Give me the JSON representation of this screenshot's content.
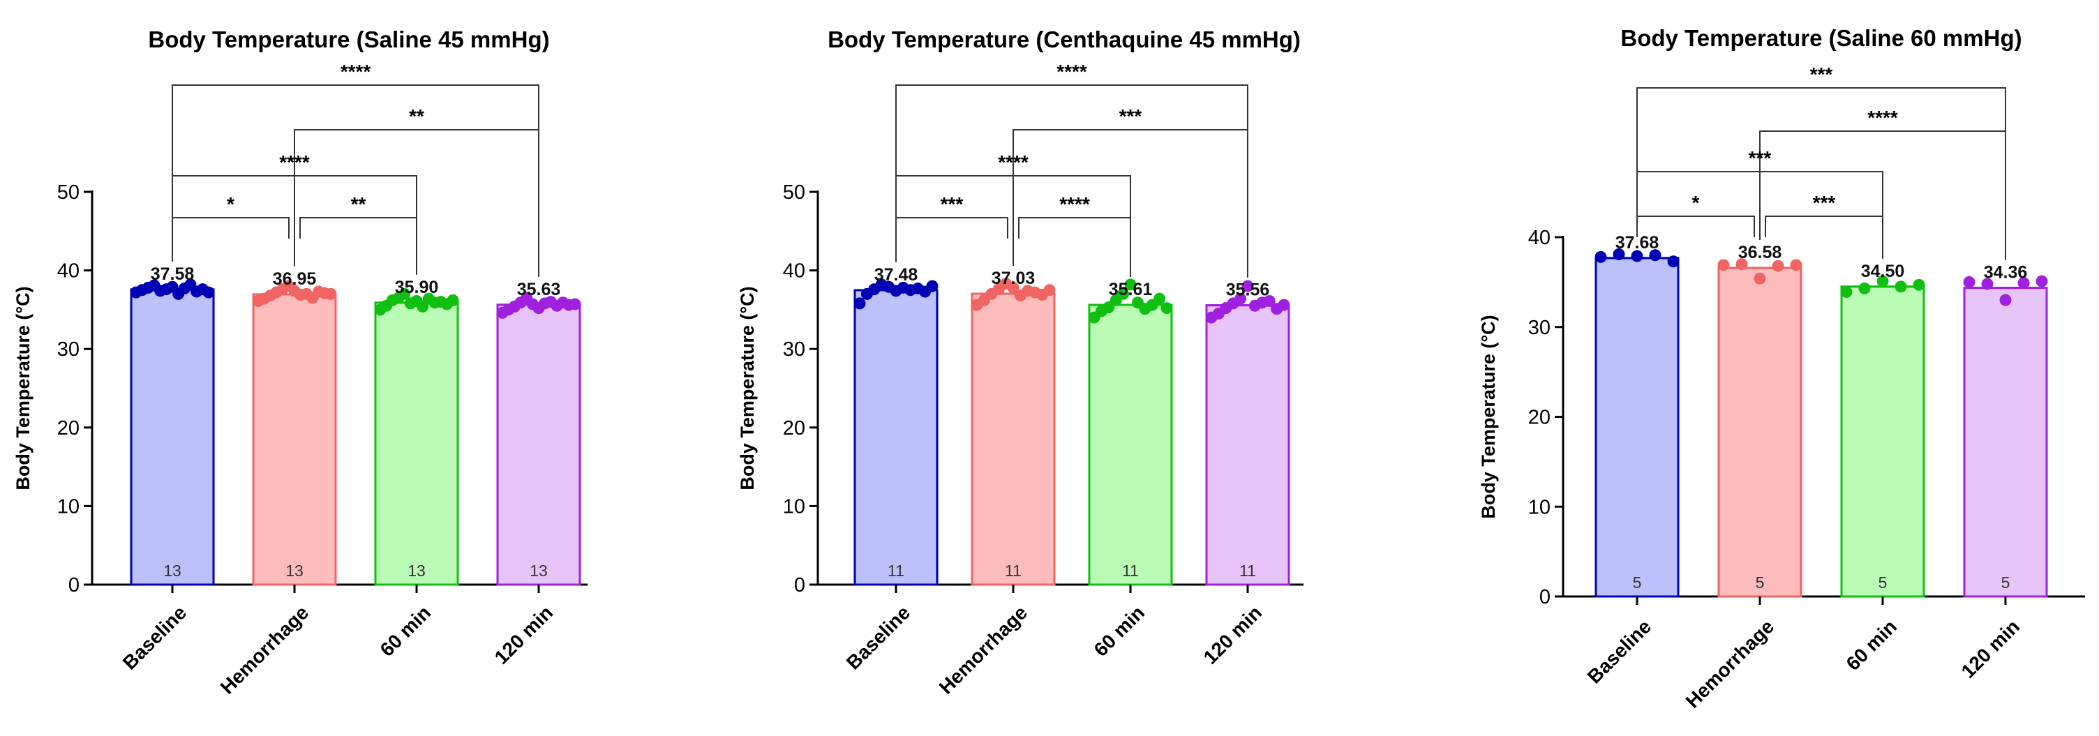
{
  "chart_data": [
    {
      "type": "bar",
      "title": "Body Temperature (Saline 45 mmHg)",
      "ylabel": "Body Temperature (°C)",
      "ylim": [
        0,
        50
      ],
      "yticks": [
        0,
        10,
        20,
        30,
        40,
        50
      ],
      "categories": [
        "Baseline",
        "Hemorrhage",
        "60 min",
        "120 min"
      ],
      "values": [
        37.58,
        36.95,
        35.9,
        35.63
      ],
      "value_labels": [
        "37.58",
        "36.95",
        "35.90",
        "35.63"
      ],
      "n": [
        13,
        13,
        13,
        13
      ],
      "n_labels": [
        "13",
        "13",
        "13",
        "13"
      ],
      "colors": [
        "#0000b4",
        "#f06464",
        "#10c010",
        "#a020e0"
      ],
      "fills": [
        "#bcc1fc",
        "#fcbcbc",
        "#bafcb6",
        "#e6c4f8"
      ],
      "points": [
        [
          37.2,
          37.5,
          37.8,
          38.1,
          37.4,
          37.6,
          37.9,
          37.0,
          37.7,
          38.2,
          37.3,
          37.6,
          37.2
        ],
        [
          36.1,
          36.4,
          36.8,
          37.2,
          37.6,
          38.0,
          37.4,
          36.9,
          37.0,
          36.5,
          37.3,
          37.1,
          37.0
        ],
        [
          35.0,
          35.5,
          36.2,
          36.5,
          37.0,
          35.8,
          36.1,
          35.4,
          36.4,
          35.9,
          36.0,
          35.7,
          36.2
        ],
        [
          34.6,
          35.0,
          35.4,
          35.9,
          36.5,
          35.7,
          35.2,
          35.8,
          36.0,
          35.5,
          35.9,
          35.6,
          35.7
        ]
      ],
      "comparisons": [
        {
          "from": 0,
          "to": 3,
          "label": "****"
        },
        {
          "from": 1,
          "to": 3,
          "label": "**"
        },
        {
          "from": 0,
          "to": 2,
          "label": "****"
        },
        {
          "from": 0,
          "to": 1,
          "label": "*"
        },
        {
          "from": 1,
          "to": 2,
          "label": "**"
        }
      ]
    },
    {
      "type": "bar",
      "title": "Body Temperature (Centhaquine 45 mmHg)",
      "ylabel": "Body Temperature (°C)",
      "ylim": [
        0,
        50
      ],
      "yticks": [
        0,
        10,
        20,
        30,
        40,
        50
      ],
      "categories": [
        "Baseline",
        "Hemorrhage",
        "60 min",
        "120 min"
      ],
      "values": [
        37.48,
        37.03,
        35.61,
        35.56
      ],
      "value_labels": [
        "37.48",
        "37.03",
        "35.61",
        "35.56"
      ],
      "n": [
        11,
        11,
        11,
        11
      ],
      "n_labels": [
        "11",
        "11",
        "11",
        "11"
      ],
      "colors": [
        "#0000b4",
        "#f06464",
        "#10c010",
        "#a020e0"
      ],
      "fills": [
        "#bcc1fc",
        "#fcbcbc",
        "#bafcb6",
        "#e6c4f8"
      ],
      "points": [
        [
          35.8,
          37.0,
          37.6,
          38.2,
          37.9,
          37.4,
          37.8,
          37.5,
          37.7,
          37.3,
          38.0
        ],
        [
          35.6,
          36.2,
          37.0,
          37.6,
          38.3,
          37.8,
          36.8,
          37.4,
          37.2,
          36.9,
          37.5
        ],
        [
          34.0,
          34.8,
          35.3,
          36.2,
          37.0,
          38.2,
          35.9,
          35.1,
          35.6,
          36.4,
          35.2
        ],
        [
          34.0,
          34.5,
          35.2,
          35.8,
          36.4,
          38.0,
          35.5,
          35.9,
          36.1,
          35.1,
          35.6
        ]
      ],
      "comparisons": [
        {
          "from": 0,
          "to": 3,
          "label": "****"
        },
        {
          "from": 1,
          "to": 3,
          "label": "***"
        },
        {
          "from": 0,
          "to": 2,
          "label": "****"
        },
        {
          "from": 0,
          "to": 1,
          "label": "***"
        },
        {
          "from": 1,
          "to": 2,
          "label": "****"
        }
      ]
    },
    {
      "type": "bar",
      "title": "Body Temperature (Saline 60 mmHg)",
      "ylabel": "Body Temperature (°C)",
      "ylim": [
        0,
        40
      ],
      "yticks": [
        0,
        10,
        20,
        30,
        40
      ],
      "categories": [
        "Baseline",
        "Hemorrhage",
        "60 min",
        "120 min"
      ],
      "values": [
        37.68,
        36.58,
        34.5,
        34.36
      ],
      "value_labels": [
        "37.68",
        "36.58",
        "34.50",
        "34.36"
      ],
      "n": [
        5,
        5,
        5,
        5
      ],
      "n_labels": [
        "5",
        "5",
        "5",
        "5"
      ],
      "colors": [
        "#0000b4",
        "#f06464",
        "#10c010",
        "#a020e0"
      ],
      "fills": [
        "#bcc1fc",
        "#fcbcbc",
        "#bafcb6",
        "#e6c4f8"
      ],
      "points": [
        [
          37.8,
          38.1,
          37.9,
          38.0,
          37.3
        ],
        [
          36.9,
          37.0,
          35.4,
          36.8,
          36.9
        ],
        [
          33.9,
          34.3,
          35.1,
          34.5,
          34.7
        ],
        [
          35.0,
          34.8,
          33.0,
          34.9,
          35.1
        ]
      ],
      "comparisons": [
        {
          "from": 0,
          "to": 3,
          "label": "***"
        },
        {
          "from": 1,
          "to": 3,
          "label": "****"
        },
        {
          "from": 0,
          "to": 2,
          "label": "***"
        },
        {
          "from": 0,
          "to": 1,
          "label": "*"
        },
        {
          "from": 1,
          "to": 2,
          "label": "***"
        }
      ]
    }
  ]
}
